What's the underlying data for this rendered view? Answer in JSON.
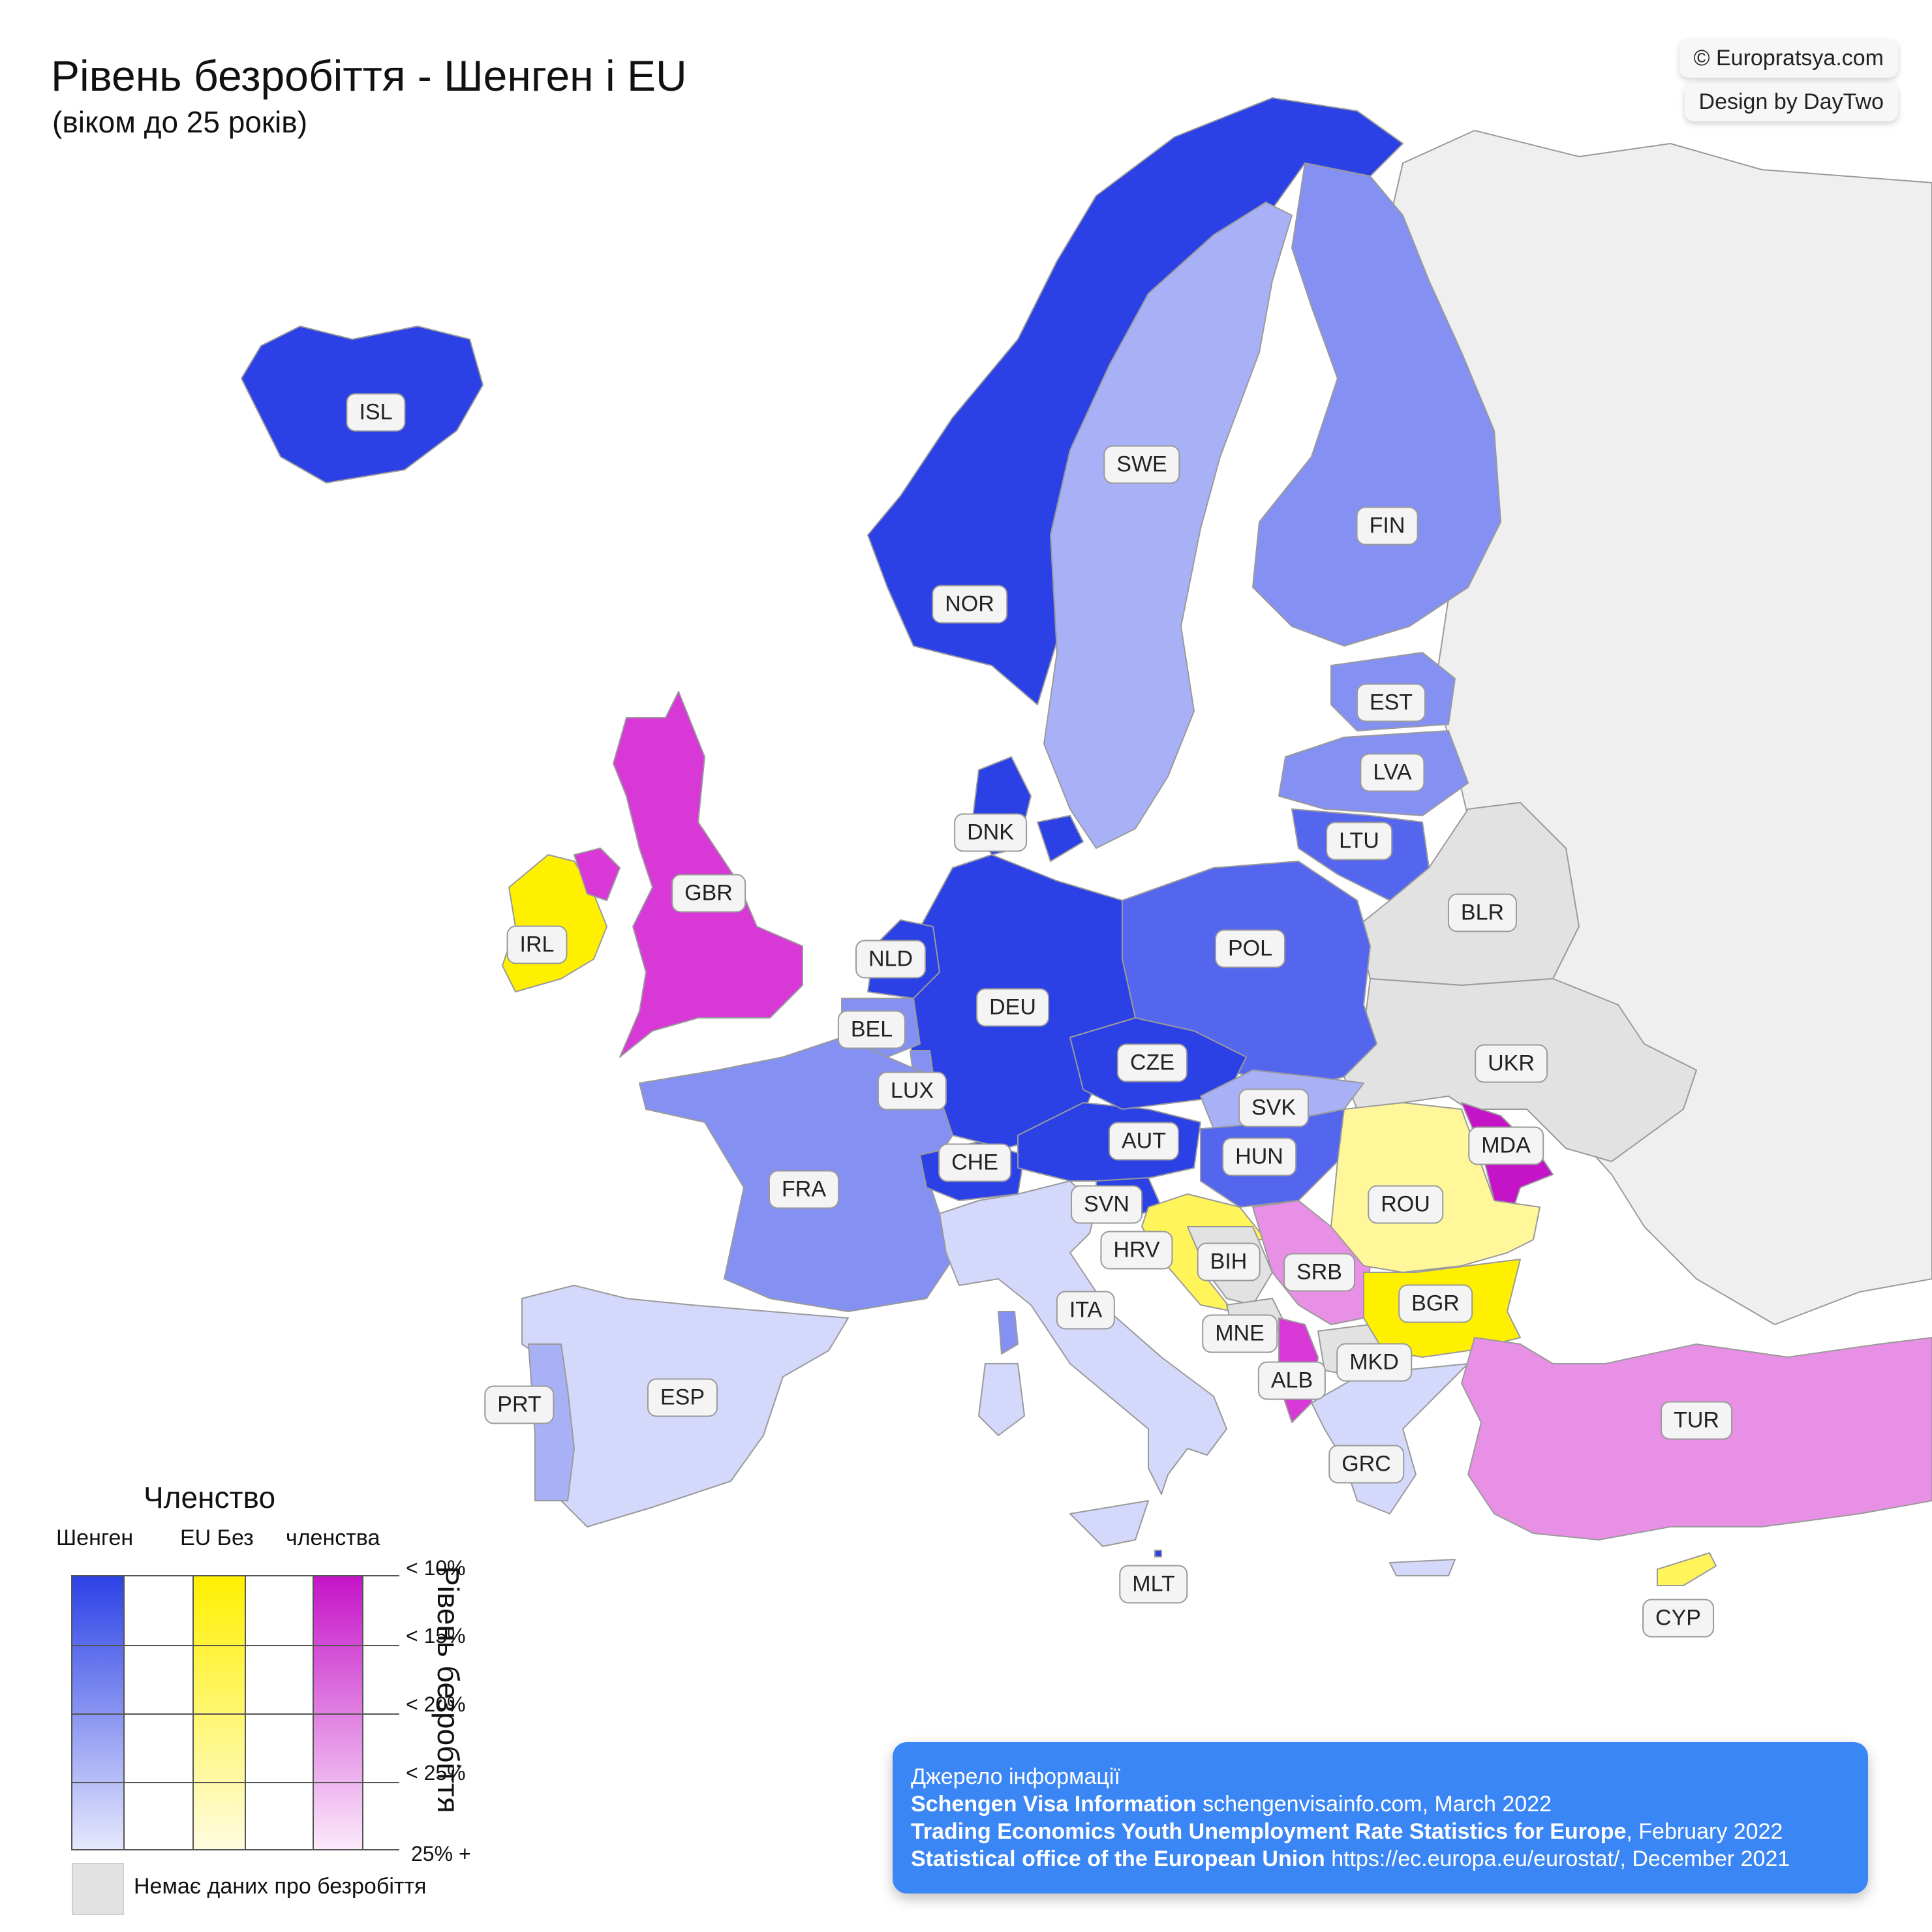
{
  "title": "Рівень безробіття - Шенген і EU",
  "subtitle": "(віком до 25 років)",
  "credits": [
    "© Europratsya.com",
    "Design by DayTwo"
  ],
  "colors": {
    "schengen": [
      "#2b41e6",
      "#5566ee",
      "#8591f2",
      "#a8b0f6",
      "#d4d8fa"
    ],
    "eu_only": [
      "#fff000",
      "#fff45a",
      "#fff79a"
    ],
    "non_member": [
      "#c514c8",
      "#d838d6",
      "#e890e6"
    ],
    "no_data": "#e2e2e2"
  },
  "countries": [
    {
      "code": "ISL",
      "group": "schengen",
      "level": "< 10%"
    },
    {
      "code": "NOR",
      "group": "schengen",
      "level": "< 10%"
    },
    {
      "code": "SWE",
      "group": "schengen",
      "level": "< 25%"
    },
    {
      "code": "FIN",
      "group": "schengen",
      "level": "< 20%"
    },
    {
      "code": "EST",
      "group": "schengen",
      "level": "< 20%"
    },
    {
      "code": "LVA",
      "group": "schengen",
      "level": "< 20%"
    },
    {
      "code": "LTU",
      "group": "schengen",
      "level": "< 15%"
    },
    {
      "code": "DNK",
      "group": "schengen",
      "level": "< 15%"
    },
    {
      "code": "GBR",
      "group": "non_member",
      "level": "< 15%"
    },
    {
      "code": "IRL",
      "group": "eu_only",
      "level": "< 10%"
    },
    {
      "code": "NLD",
      "group": "schengen",
      "level": "< 10%"
    },
    {
      "code": "BEL",
      "group": "schengen",
      "level": "< 20%"
    },
    {
      "code": "LUX",
      "group": "schengen",
      "level": "< 20%"
    },
    {
      "code": "DEU",
      "group": "schengen",
      "level": "< 10%"
    },
    {
      "code": "POL",
      "group": "schengen",
      "level": "< 15%"
    },
    {
      "code": "CZE",
      "group": "schengen",
      "level": "< 10%"
    },
    {
      "code": "SVK",
      "group": "schengen",
      "level": "< 25%"
    },
    {
      "code": "AUT",
      "group": "schengen",
      "level": "< 10%"
    },
    {
      "code": "HUN",
      "group": "schengen",
      "level": "< 15%"
    },
    {
      "code": "CHE",
      "group": "schengen",
      "level": "< 10%"
    },
    {
      "code": "FRA",
      "group": "schengen",
      "level": "< 20%"
    },
    {
      "code": "ESP",
      "group": "schengen",
      "level": "25% +"
    },
    {
      "code": "PRT",
      "group": "schengen",
      "level": "< 25%"
    },
    {
      "code": "ITA",
      "group": "schengen",
      "level": "25% +"
    },
    {
      "code": "SVN",
      "group": "schengen",
      "level": "< 10%"
    },
    {
      "code": "HRV",
      "group": "eu_only",
      "level": "< 20%"
    },
    {
      "code": "BIH",
      "group": "no_data",
      "level": ""
    },
    {
      "code": "SRB",
      "group": "non_member",
      "level": "< 25%"
    },
    {
      "code": "MNE",
      "group": "no_data",
      "level": ""
    },
    {
      "code": "ALB",
      "group": "non_member",
      "level": "< 15%"
    },
    {
      "code": "MKD",
      "group": "no_data",
      "level": ""
    },
    {
      "code": "GRC",
      "group": "schengen",
      "level": "25% +"
    },
    {
      "code": "ROU",
      "group": "eu_only",
      "level": "< 25%"
    },
    {
      "code": "BGR",
      "group": "eu_only",
      "level": "< 15%"
    },
    {
      "code": "MDA",
      "group": "non_member",
      "level": "< 10%"
    },
    {
      "code": "TUR",
      "group": "non_member",
      "level": "< 25%"
    },
    {
      "code": "CYP",
      "group": "eu_only",
      "level": "< 20%"
    },
    {
      "code": "MLT",
      "group": "schengen",
      "level": "< 10%"
    },
    {
      "code": "BLR",
      "group": "no_data",
      "level": ""
    },
    {
      "code": "UKR",
      "group": "no_data",
      "level": ""
    }
  ],
  "legend": {
    "title": "Членство",
    "columns": [
      "Шенген",
      "EU Без",
      "членства"
    ],
    "axis_title": "Рівень безробіття",
    "ticks": [
      "< 10%",
      "< 15%",
      "< 20%",
      "< 25%",
      "25% +"
    ],
    "no_data": "Немає даних про безробіття"
  },
  "source": {
    "heading": "Джерело інформації",
    "lines": [
      {
        "name": "Schengen Visa Information",
        "detail": "schengenvisainfo.com, March 2022"
      },
      {
        "name": "Trading Economics Youth Unemployment Rate Statistics for Europe",
        "detail": ", February 2022"
      },
      {
        "name": "Statistical office of the European Union",
        "detail": "https://ec.europa.eu/eurostat/, December 2021"
      }
    ]
  }
}
